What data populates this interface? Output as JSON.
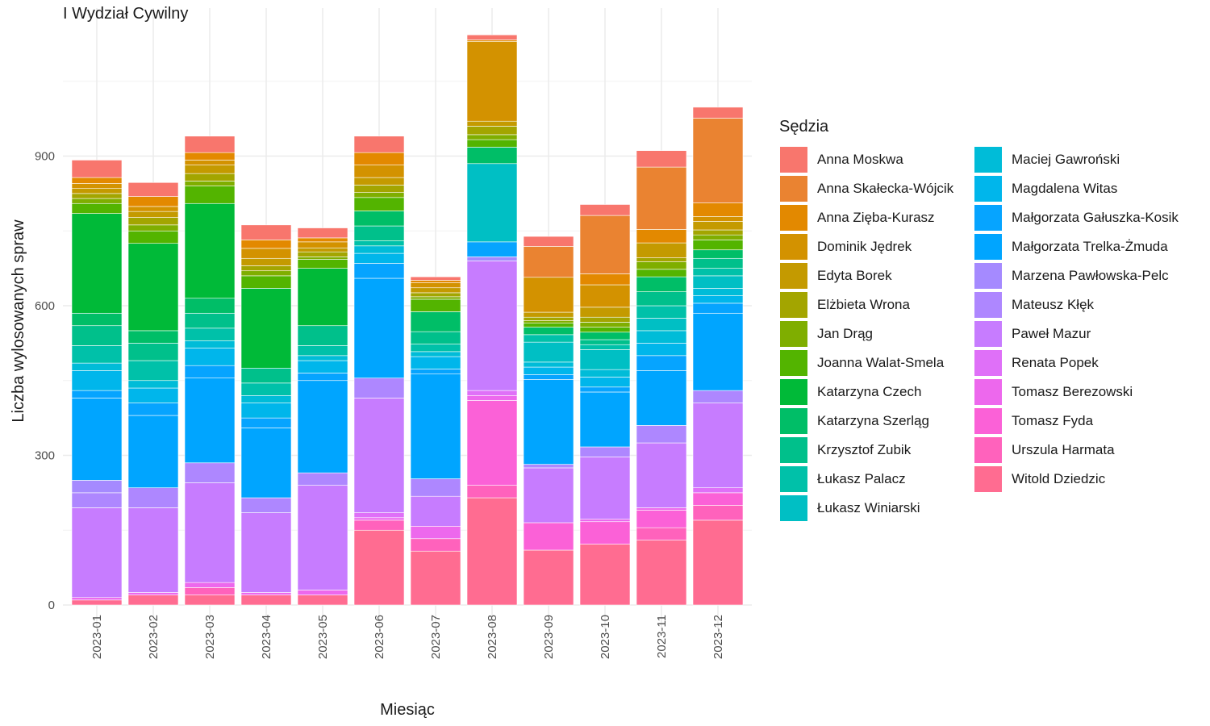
{
  "chart_data": {
    "type": "bar",
    "stacked": true,
    "title": "I Wydział Cywilny",
    "xlabel": "Miesiąc",
    "ylabel": "Liczba wylosowanych spraw",
    "ylim": [
      0,
      1180
    ],
    "yticks": [
      0,
      300,
      600,
      900
    ],
    "grid": true,
    "legend_title": "Sędzia",
    "legend_position": "right",
    "categories": [
      "2023-01",
      "2023-02",
      "2023-03",
      "2023-04",
      "2023-05",
      "2023-06",
      "2023-07",
      "2023-08",
      "2023-09",
      "2023-10",
      "2023-11",
      "2023-12"
    ],
    "series": [
      {
        "name": "Anna Moskwa",
        "color": "#F8766D",
        "values": [
          35,
          28,
          33,
          30,
          20,
          33,
          7,
          10,
          20,
          22,
          33,
          22
        ]
      },
      {
        "name": "Anna Skałecka-Wójcik",
        "color": "#EA8331",
        "values": [
          0,
          0,
          0,
          0,
          0,
          0,
          0,
          0,
          62,
          117,
          125,
          170
        ]
      },
      {
        "name": "Anna Zięba-Kurasz",
        "color": "#E38900",
        "values": [
          12,
          20,
          15,
          17,
          8,
          25,
          5,
          3,
          0,
          22,
          27,
          27
        ]
      },
      {
        "name": "Dominik Jędrek",
        "color": "#D39200",
        "values": [
          10,
          10,
          10,
          20,
          12,
          25,
          10,
          160,
          70,
          45,
          0,
          10
        ]
      },
      {
        "name": "Edyta Borek",
        "color": "#C49A00",
        "values": [
          10,
          12,
          17,
          15,
          8,
          15,
          10,
          10,
          10,
          20,
          30,
          17
        ]
      },
      {
        "name": "Elżbieta Wrona",
        "color": "#A3A500",
        "values": [
          10,
          15,
          15,
          10,
          10,
          15,
          8,
          17,
          7,
          10,
          8,
          10
        ]
      },
      {
        "name": "Jan Drąg",
        "color": "#7FAE00",
        "values": [
          10,
          12,
          10,
          10,
          5,
          10,
          5,
          10,
          5,
          10,
          15,
          10
        ]
      },
      {
        "name": "Joanna Walat-Smela",
        "color": "#53B400",
        "values": [
          20,
          25,
          35,
          25,
          18,
          27,
          25,
          15,
          8,
          10,
          15,
          20
        ]
      },
      {
        "name": "Katarzyna Czech",
        "color": "#00BA38",
        "values": [
          200,
          175,
          190,
          160,
          115,
          0,
          0,
          0,
          0,
          0,
          0,
          0
        ]
      },
      {
        "name": "Katarzyna Szerląg",
        "color": "#00BE67",
        "values": [
          25,
          25,
          30,
          0,
          0,
          30,
          40,
          33,
          15,
          15,
          30,
          17
        ]
      },
      {
        "name": "Krzysztof Zubik",
        "color": "#00C08B",
        "values": [
          40,
          35,
          30,
          30,
          40,
          30,
          25,
          0,
          0,
          10,
          28,
          20
        ]
      },
      {
        "name": "Łukasz Palacz",
        "color": "#00C1A9",
        "values": [
          35,
          40,
          25,
          25,
          20,
          10,
          15,
          0,
          15,
          10,
          25,
          15
        ]
      },
      {
        "name": "Łukasz Winiarski",
        "color": "#00BFC4",
        "values": [
          0,
          0,
          0,
          0,
          0,
          0,
          0,
          157,
          40,
          40,
          25,
          25
        ]
      },
      {
        "name": "Maciej Gawroński",
        "color": "#00BCD8",
        "values": [
          15,
          15,
          15,
          15,
          10,
          15,
          10,
          0,
          10,
          15,
          25,
          15
        ]
      },
      {
        "name": "Magdalena Witas",
        "color": "#00B6EB",
        "values": [
          40,
          30,
          35,
          30,
          25,
          20,
          25,
          0,
          15,
          20,
          25,
          15
        ]
      },
      {
        "name": "Małgorzata Gałuszka-Kosik",
        "color": "#06A4FF",
        "values": [
          15,
          25,
          25,
          20,
          15,
          30,
          10,
          30,
          10,
          10,
          30,
          20
        ]
      },
      {
        "name": "Małgorzata Trelka-Żmuda",
        "color": "#00A5FF",
        "values": [
          165,
          145,
          170,
          140,
          185,
          200,
          210,
          0,
          170,
          110,
          110,
          155
        ]
      },
      {
        "name": "Marzena Pawłowska-Pelc",
        "color": "#A58AFF",
        "values": [
          25,
          0,
          0,
          0,
          0,
          0,
          0,
          8,
          0,
          0,
          0,
          0
        ]
      },
      {
        "name": "Mateusz Kłęk",
        "color": "#AE87FF",
        "values": [
          30,
          40,
          40,
          30,
          25,
          40,
          35,
          0,
          7,
          20,
          35,
          25
        ]
      },
      {
        "name": "Paweł Mazur",
        "color": "#C77CFF",
        "values": [
          180,
          170,
          200,
          160,
          210,
          230,
          60,
          260,
          110,
          125,
          130,
          170
        ]
      },
      {
        "name": "Renata Popek",
        "color": "#DF70F8",
        "values": [
          0,
          0,
          0,
          0,
          0,
          10,
          0,
          10,
          0,
          0,
          0,
          10
        ]
      },
      {
        "name": "Tomasz Berezowski",
        "color": "#ED68ED",
        "values": [
          5,
          5,
          10,
          5,
          10,
          5,
          25,
          10,
          0,
          5,
          5,
          0
        ]
      },
      {
        "name": "Tomasz Fyda",
        "color": "#FB61D7",
        "values": [
          0,
          0,
          0,
          0,
          0,
          0,
          0,
          170,
          55,
          45,
          35,
          25
        ]
      },
      {
        "name": "Urszula Harmata",
        "color": "#FF62BC",
        "values": [
          0,
          0,
          15,
          0,
          0,
          20,
          25,
          25,
          0,
          0,
          25,
          30
        ]
      },
      {
        "name": "Witold Dziedzic",
        "color": "#FF6C91",
        "values": [
          10,
          20,
          20,
          20,
          20,
          150,
          108,
          215,
          110,
          122,
          130,
          170
        ]
      }
    ]
  }
}
